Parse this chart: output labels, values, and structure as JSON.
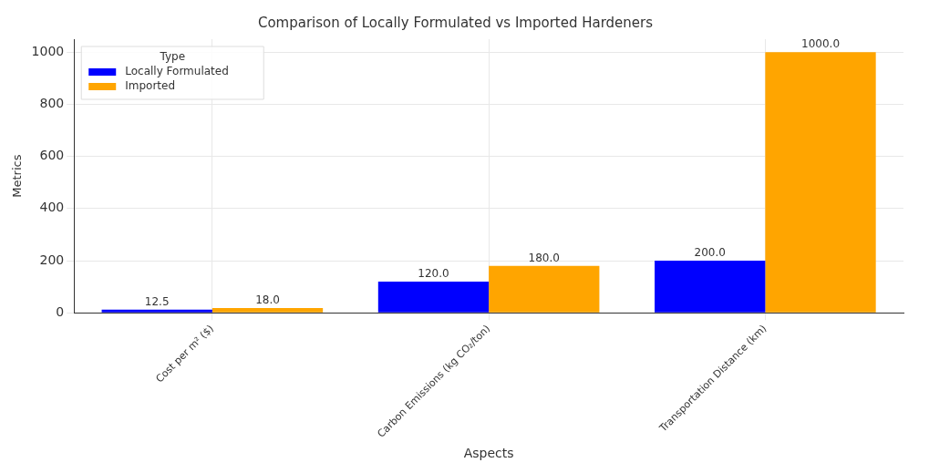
{
  "chart_data": {
    "type": "bar",
    "title": "Comparison of Locally Formulated vs Imported Hardeners",
    "xlabel": "Aspects",
    "ylabel": "Metrics",
    "legend_title": "Type",
    "categories": [
      "Cost per m² ($)",
      "Carbon Emissions (kg CO₂/ton)",
      "Transportation Distance (km)"
    ],
    "series": [
      {
        "name": "Locally Formulated",
        "color": "#0000ff",
        "values": [
          12.5,
          120,
          200
        ],
        "value_labels": [
          "12.5",
          "120.0",
          "200.0"
        ]
      },
      {
        "name": "Imported",
        "color": "#ffa500",
        "values": [
          18,
          180,
          1000
        ],
        "value_labels": [
          "18.0",
          "180.0",
          "1000.0"
        ]
      }
    ],
    "ylim": [
      0,
      1050
    ],
    "yticks": [
      0,
      200,
      400,
      600,
      800,
      1000
    ],
    "grid": true,
    "legend": "top left"
  }
}
